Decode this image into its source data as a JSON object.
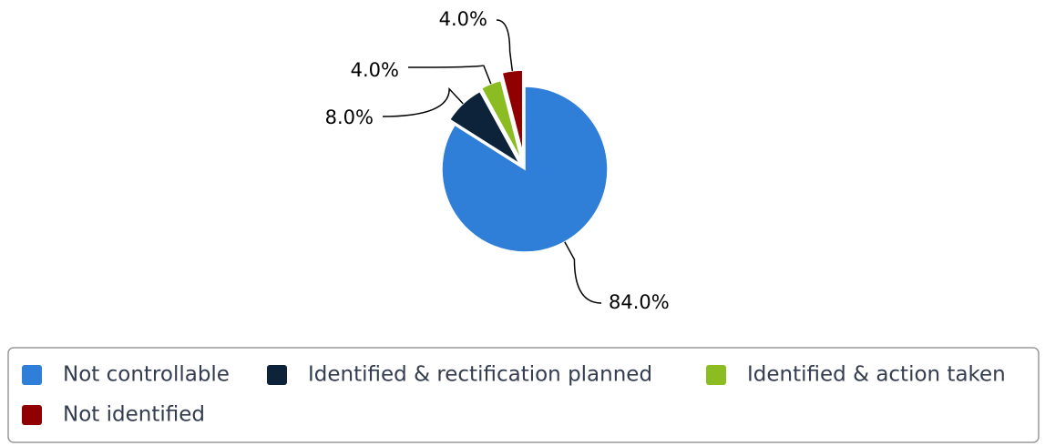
{
  "chart_data": {
    "type": "pie",
    "categories": [
      "Not controllable",
      "Identified & rectification planned",
      "Identified & action taken",
      "Not identified"
    ],
    "values": [
      84,
      8,
      4,
      4
    ],
    "value_labels": [
      "84.0%",
      "8.0%",
      "4.0%",
      "4.0%"
    ],
    "colors": [
      "#2f7ed8",
      "#0d233a",
      "#8bbc21",
      "#910000"
    ],
    "legend": "bottom"
  }
}
